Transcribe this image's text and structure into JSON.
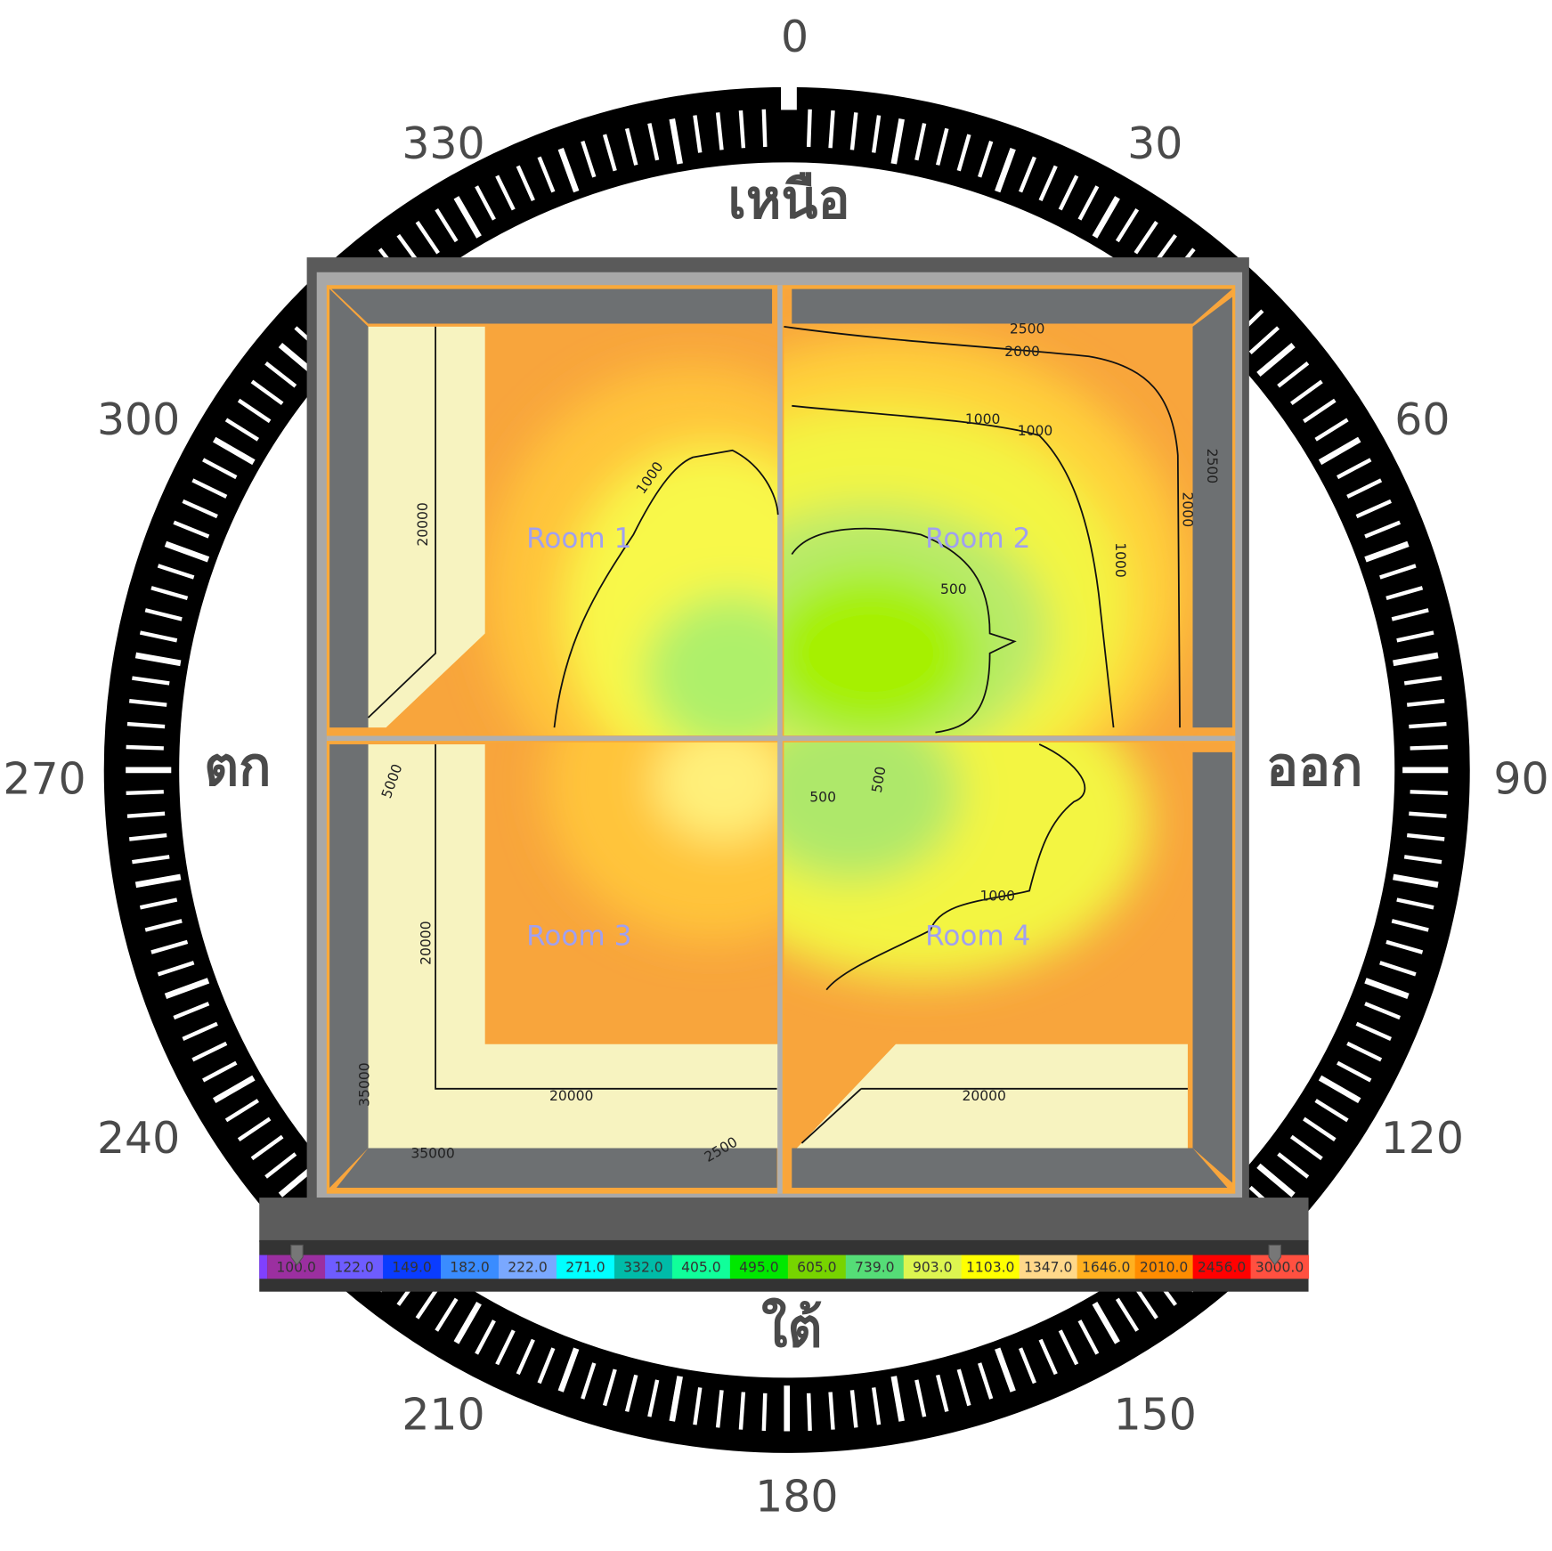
{
  "compass": {
    "degree_labels": [
      "0",
      "30",
      "60",
      "90",
      "120",
      "150",
      "180",
      "210",
      "240",
      "270",
      "300",
      "330"
    ],
    "directions": {
      "north": "เหนือ",
      "east": "ออก",
      "south": "ใต้",
      "west": "ตก"
    }
  },
  "rooms": [
    "Room 1",
    "Room 2",
    "Room 3",
    "Room 4"
  ],
  "contour_labels": {
    "room1": [
      "20000",
      "1000"
    ],
    "room2": [
      "2500",
      "2000",
      "1000",
      "1000",
      "500",
      "2500",
      "2000",
      "1000"
    ],
    "room3": [
      "5000",
      "20000",
      "20000",
      "35000",
      "35000",
      "2500"
    ],
    "room4": [
      "500",
      "500",
      "1000",
      "20000"
    ]
  },
  "legend": {
    "values": [
      "100.0",
      "122.0",
      "149.0",
      "182.0",
      "222.0",
      "271.0",
      "332.0",
      "405.0",
      "495.0",
      "605.0",
      "739.0",
      "903.0",
      "1103.0",
      "1347.0",
      "1646.0",
      "2010.0",
      "2456.0",
      "3000.0"
    ],
    "colors": [
      "#9b2fa0",
      "#6e5cff",
      "#0a3cff",
      "#3a8cff",
      "#7aa8ff",
      "#00ffff",
      "#00bba8",
      "#10ff9a",
      "#00e800",
      "#77d400",
      "#55dd77",
      "#ddf550",
      "#ffff00",
      "#ffd88a",
      "#ffb020",
      "#ff8c00",
      "#ff0000",
      "#ff5040"
    ],
    "min_marker": "100.0",
    "max_marker": "3000.0"
  },
  "colors": {
    "ring": "#000000",
    "wall": "#6d7072",
    "frame": "#5a5a5a",
    "room_label": "#a0a0f0"
  }
}
